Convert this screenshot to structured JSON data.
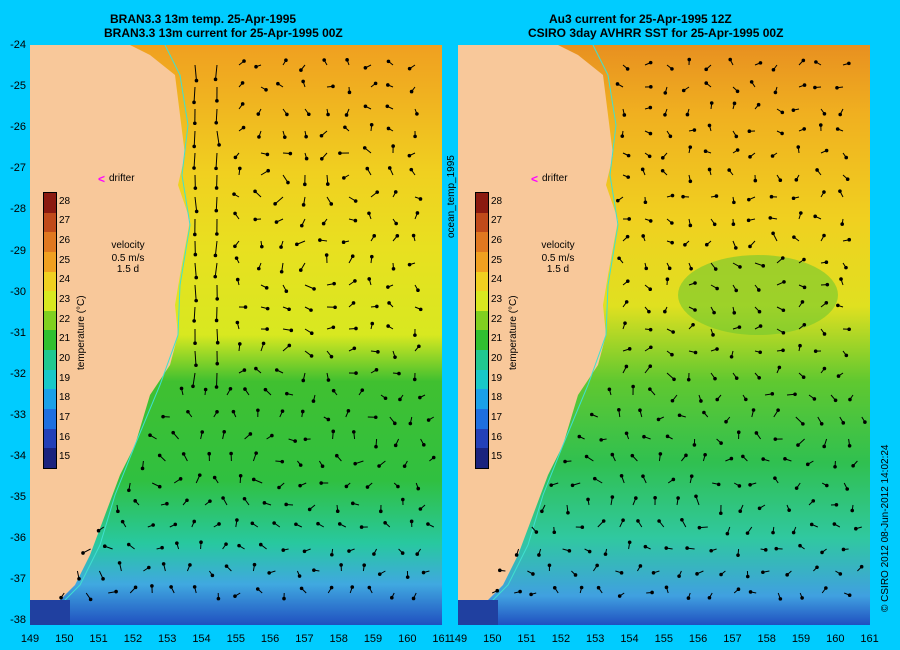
{
  "left_panel": {
    "title_line1": "BRAN3.3 13m temp. 25-Apr-1995",
    "title_line2": "BRAN3.3 13m current for 25-Apr-1995 00Z",
    "drifter_label": "drifter",
    "velocity_label": "velocity",
    "velocity_scale": "0.5 m/s",
    "velocity_duration": "1.5 d"
  },
  "right_panel": {
    "title_line1": "Au3 current for 25-Apr-1995 12Z",
    "title_line2": "CSIRO 3day AVHRR SST for 25-Apr-1995 00Z",
    "drifter_label": "drifter",
    "velocity_label": "velocity",
    "velocity_scale": "0.5 m/s",
    "velocity_duration": "1.5 d"
  },
  "colorbar": {
    "label": "temperature (°C)",
    "ticks": [
      "15",
      "16",
      "17",
      "18",
      "19",
      "20",
      "21",
      "22",
      "23",
      "24",
      "25",
      "26",
      "27",
      "28"
    ],
    "colors": [
      "#1a237e",
      "#2340b8",
      "#1e6fe0",
      "#1aa0e8",
      "#18c8c8",
      "#20c890",
      "#30c030",
      "#80d020",
      "#d8e820",
      "#f0d020",
      "#f0a020",
      "#e07820",
      "#c04a1a",
      "#8b1a10"
    ]
  },
  "middle_label": "ocean_temp_1995",
  "copyright": "© CSIRO 2012  08-Jun-2012 14:02:24",
  "y_axis_ticks": [
    "-24",
    "-25",
    "-26",
    "-27",
    "-28",
    "-29",
    "-30",
    "-31",
    "-32",
    "-33",
    "-34",
    "-35",
    "-36",
    "-37",
    "-38"
  ],
  "x_axis_ticks": [
    "149",
    "150",
    "151",
    "152",
    "153",
    "154",
    "155",
    "156",
    "157",
    "158",
    "159",
    "160",
    "161"
  ],
  "colors": {
    "background": "#00ccff",
    "land": "#f8c89a",
    "drifter": "#ff00ff"
  }
}
